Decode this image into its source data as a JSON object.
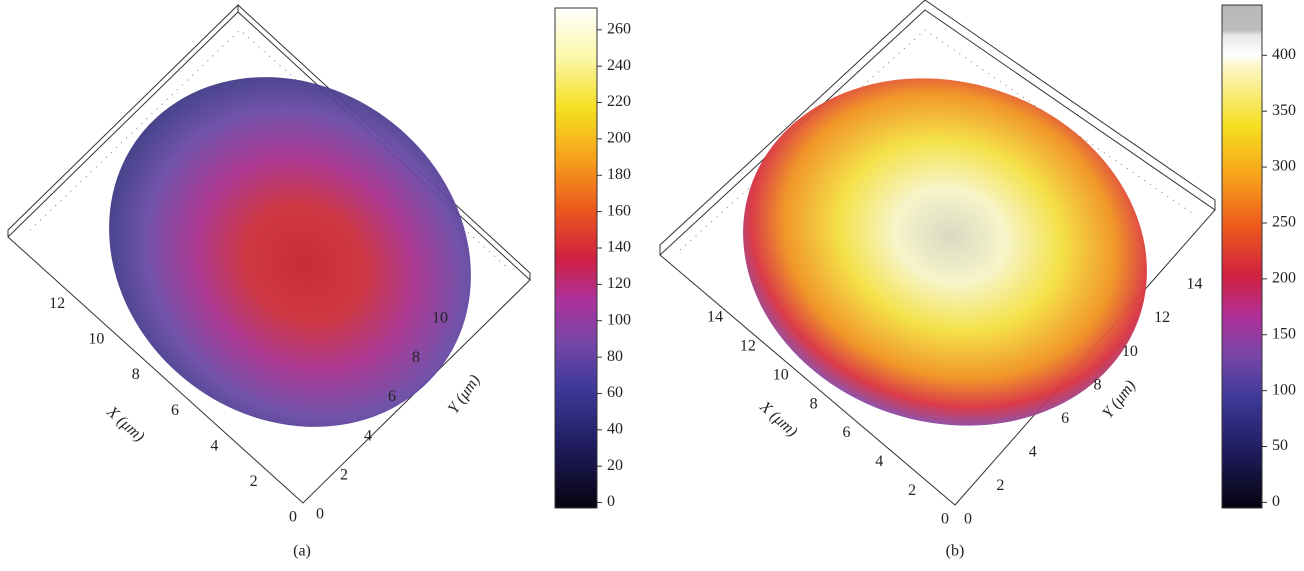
{
  "figures": [
    {
      "caption": "(a)",
      "x_axis": {
        "label": "X (μm)",
        "lim": [
          0,
          14.6
        ],
        "ticks": [
          0,
          2,
          4,
          6,
          8,
          10,
          12
        ]
      },
      "y_axis": {
        "label": "Y (μm)",
        "lim": [
          0,
          12.5
        ],
        "ticks": [
          0,
          2,
          4,
          6,
          8,
          10
        ]
      },
      "colorbar": {
        "lim": [
          -3,
          272
        ],
        "ticks": [
          0,
          20,
          40,
          60,
          80,
          100,
          120,
          140,
          160,
          180,
          200,
          220,
          240,
          260
        ]
      }
    },
    {
      "caption": "(b)",
      "x_axis": {
        "label": "X (μm)",
        "lim": [
          0,
          16.5
        ],
        "ticks": [
          0,
          2,
          4,
          6,
          8,
          10,
          12,
          14
        ]
      },
      "y_axis": {
        "label": "Y (μm)",
        "lim": [
          0,
          16.5
        ],
        "ticks": [
          0,
          2,
          4,
          6,
          8,
          10,
          12,
          14
        ]
      },
      "colorbar": {
        "lim": [
          -5,
          445
        ],
        "ticks": [
          0,
          50,
          100,
          150,
          200,
          250,
          300,
          350,
          400
        ]
      }
    }
  ]
}
